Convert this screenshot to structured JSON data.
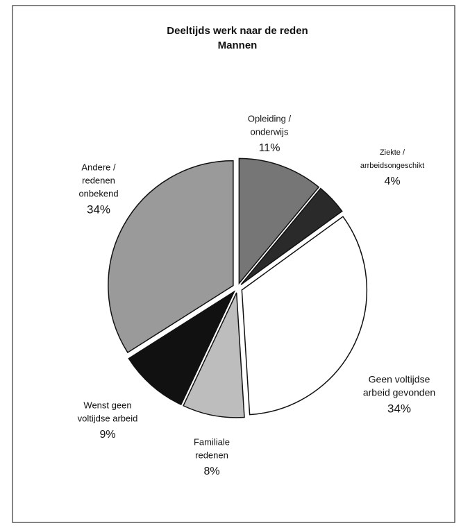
{
  "chart_data": {
    "type": "pie",
    "title": "Deeltijds werk naar de reden",
    "subtitle": "Mannen",
    "categories": [
      [
        "Opleiding /",
        "onderwijs"
      ],
      [
        "Ziekte /",
        "arrbeidsongeschikt"
      ],
      [
        "Geen voltijdse",
        "arbeid gevonden"
      ],
      [
        "Familiale",
        "redenen"
      ],
      [
        "Wenst geen",
        "voltijdse arbeid"
      ],
      [
        "Andere /",
        "redenen",
        "onbekend"
      ]
    ],
    "values": [
      11,
      4,
      34,
      8,
      9,
      34
    ],
    "value_labels": [
      "11%",
      "4%",
      "34%",
      "8%",
      "9%",
      "34%"
    ],
    "colors": [
      "#767676",
      "#2a2a2a",
      "#ffffff",
      "#bdbdbd",
      "#111111",
      "#9a9a9a"
    ]
  }
}
